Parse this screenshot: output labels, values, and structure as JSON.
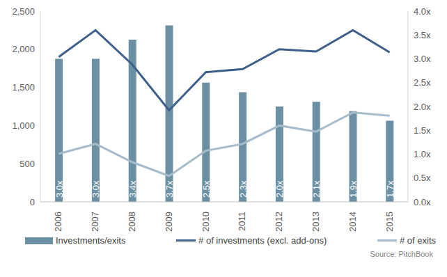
{
  "chart_data": {
    "type": "bar",
    "categories": [
      "2006",
      "2007",
      "2008",
      "2009",
      "2010",
      "2011",
      "2012",
      "2013",
      "2014",
      "2015"
    ],
    "series": [
      {
        "name": "Investments/exits",
        "type": "bar",
        "color": "#6b8fa3",
        "axis": "y2",
        "values": [
          3.0,
          3.0,
          3.4,
          3.7,
          2.5,
          2.3,
          2.0,
          2.1,
          1.9,
          1.7
        ],
        "value_labels": [
          "3.0x",
          "3.0x",
          "3.4x",
          "3.7x",
          "2.5x",
          "2.3x",
          "2.0x",
          "2.1x",
          "1.9x",
          "1.7x"
        ]
      },
      {
        "name": "# of investments (excl. add-ons)",
        "type": "line",
        "color": "#3e5f8a",
        "values": [
          1900,
          2250,
          1800,
          1200,
          1700,
          1740,
          2000,
          1970,
          2250,
          1960
        ]
      },
      {
        "name": "# of exits",
        "type": "line",
        "color": "#a6bccb",
        "values": [
          630,
          760,
          520,
          340,
          670,
          760,
          1000,
          920,
          1170,
          1130
        ]
      }
    ],
    "ylim": [
      0,
      2500
    ],
    "yticks": [
      0,
      500,
      {
        "value": 1000,
        "label": "1,000"
      },
      {
        "value": 1500,
        "label": "1,500"
      },
      {
        "value": 2000,
        "label": "2,000"
      },
      {
        "value": 2500,
        "label": "2,500"
      }
    ],
    "y2lim": [
      0,
      4
    ],
    "y2ticks": [
      {
        "value": 0,
        "label": "0.0x"
      },
      {
        "value": 0.5,
        "label": "0.5x"
      },
      {
        "value": 1,
        "label": "1.0x"
      },
      {
        "value": 1.5,
        "label": "1.5x"
      },
      {
        "value": 2,
        "label": "2.0x"
      },
      {
        "value": 2.5,
        "label": "2.5x"
      },
      {
        "value": 3,
        "label": "3.0x"
      },
      {
        "value": 3.5,
        "label": "3.5x"
      },
      {
        "value": 4,
        "label": "4.0x"
      }
    ],
    "grid": false,
    "data_labels": true,
    "legend": "bottom",
    "source": "Source: PitchBook"
  }
}
